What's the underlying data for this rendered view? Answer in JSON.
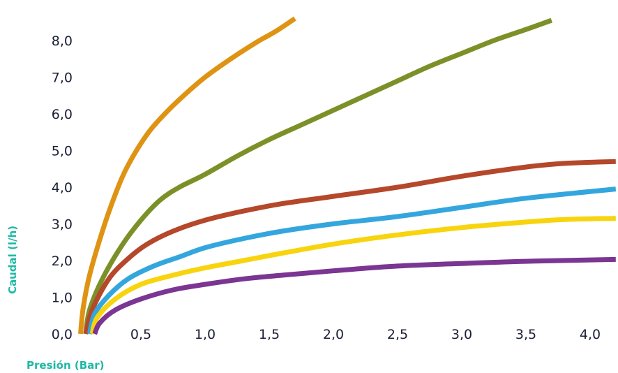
{
  "chart_data": {
    "type": "line",
    "title": "",
    "xlabel": "Presión (Bar)",
    "ylabel": "Caudal (l/h)",
    "xlim": [
      0,
      4.2
    ],
    "ylim": [
      0,
      8.7
    ],
    "grid": false,
    "legend": "none",
    "xticks": [
      "0,0",
      "0,5",
      "1,0",
      "1,5",
      "2,0",
      "2,5",
      "3,0",
      "3,5",
      "4,0"
    ],
    "xtick_values": [
      0,
      0.5,
      1.0,
      1.5,
      2.0,
      2.5,
      3.0,
      3.5,
      4.0
    ],
    "yticks": [
      "0,0",
      "1,0",
      "2,0",
      "3,0",
      "4,0",
      "5,0",
      "6,0",
      "7,0",
      "8,0"
    ],
    "ytick_values": [
      0,
      1.0,
      2.0,
      3.0,
      4.0,
      5.0,
      6.0,
      7.0,
      8.0
    ],
    "series": [
      {
        "color": "#df9313",
        "points": [
          [
            0.03,
            0.0
          ],
          [
            0.05,
            0.7
          ],
          [
            0.1,
            1.6
          ],
          [
            0.2,
            2.8
          ],
          [
            0.3,
            3.8
          ],
          [
            0.4,
            4.6
          ],
          [
            0.55,
            5.45
          ],
          [
            0.7,
            6.05
          ],
          [
            0.85,
            6.55
          ],
          [
            1.0,
            7.0
          ],
          [
            1.2,
            7.5
          ],
          [
            1.4,
            7.95
          ],
          [
            1.55,
            8.25
          ],
          [
            1.7,
            8.6
          ]
        ]
      },
      {
        "color": "#7b9128",
        "points": [
          [
            0.07,
            0.0
          ],
          [
            0.1,
            0.65
          ],
          [
            0.2,
            1.5
          ],
          [
            0.35,
            2.4
          ],
          [
            0.5,
            3.1
          ],
          [
            0.65,
            3.65
          ],
          [
            0.8,
            4.0
          ],
          [
            1.0,
            4.35
          ],
          [
            1.25,
            4.85
          ],
          [
            1.5,
            5.3
          ],
          [
            1.75,
            5.7
          ],
          [
            2.0,
            6.1
          ],
          [
            2.25,
            6.5
          ],
          [
            2.5,
            6.9
          ],
          [
            2.75,
            7.3
          ],
          [
            3.0,
            7.65
          ],
          [
            3.25,
            8.0
          ],
          [
            3.5,
            8.3
          ],
          [
            3.7,
            8.55
          ]
        ]
      },
      {
        "color": "#b5472a",
        "points": [
          [
            0.07,
            0.0
          ],
          [
            0.12,
            0.65
          ],
          [
            0.25,
            1.5
          ],
          [
            0.4,
            2.05
          ],
          [
            0.55,
            2.45
          ],
          [
            0.75,
            2.8
          ],
          [
            1.0,
            3.1
          ],
          [
            1.3,
            3.35
          ],
          [
            1.6,
            3.55
          ],
          [
            2.0,
            3.75
          ],
          [
            2.5,
            4.0
          ],
          [
            3.0,
            4.3
          ],
          [
            3.5,
            4.55
          ],
          [
            3.8,
            4.65
          ],
          [
            4.2,
            4.7
          ]
        ]
      },
      {
        "color": "#34a6de",
        "points": [
          [
            0.1,
            0.0
          ],
          [
            0.14,
            0.55
          ],
          [
            0.25,
            1.05
          ],
          [
            0.4,
            1.5
          ],
          [
            0.6,
            1.85
          ],
          [
            0.8,
            2.1
          ],
          [
            1.0,
            2.35
          ],
          [
            1.3,
            2.6
          ],
          [
            1.6,
            2.8
          ],
          [
            2.0,
            3.0
          ],
          [
            2.5,
            3.2
          ],
          [
            3.0,
            3.45
          ],
          [
            3.5,
            3.7
          ],
          [
            4.2,
            3.95
          ]
        ]
      },
      {
        "color": "#f7d40e",
        "points": [
          [
            0.12,
            0.0
          ],
          [
            0.16,
            0.45
          ],
          [
            0.3,
            0.95
          ],
          [
            0.5,
            1.35
          ],
          [
            0.75,
            1.6
          ],
          [
            1.0,
            1.8
          ],
          [
            1.3,
            2.0
          ],
          [
            1.6,
            2.2
          ],
          [
            2.0,
            2.45
          ],
          [
            2.5,
            2.7
          ],
          [
            3.0,
            2.9
          ],
          [
            3.5,
            3.05
          ],
          [
            3.8,
            3.12
          ],
          [
            4.2,
            3.15
          ]
        ]
      },
      {
        "color": "#7b3592",
        "points": [
          [
            0.14,
            0.0
          ],
          [
            0.18,
            0.3
          ],
          [
            0.3,
            0.65
          ],
          [
            0.5,
            0.95
          ],
          [
            0.75,
            1.2
          ],
          [
            1.0,
            1.35
          ],
          [
            1.3,
            1.5
          ],
          [
            1.6,
            1.6
          ],
          [
            2.0,
            1.72
          ],
          [
            2.5,
            1.85
          ],
          [
            3.0,
            1.92
          ],
          [
            3.5,
            1.98
          ],
          [
            4.2,
            2.03
          ]
        ]
      }
    ]
  }
}
